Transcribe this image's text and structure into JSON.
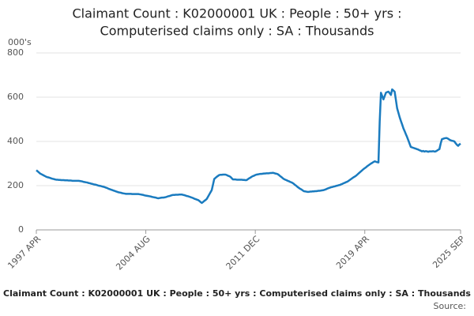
{
  "chart_data": {
    "type": "line",
    "title": [
      "Claimant Count : K02000001 UK : People : 50+ yrs :",
      "Computerised claims only : SA : Thousands"
    ],
    "y_unit": "000's",
    "footer": "Claimant Count : K02000001 UK : People : 50+ yrs : Computerised claims only : SA : Thousands",
    "source": "Source:",
    "categories": [
      "1997 APR",
      null,
      null,
      null,
      null,
      null,
      null,
      null,
      null,
      null,
      null,
      null,
      null,
      null,
      null,
      null,
      null,
      null,
      null,
      null,
      null,
      null,
      null,
      null,
      null,
      null,
      null,
      null,
      null,
      null,
      null,
      null,
      null,
      null,
      null,
      null,
      null,
      null,
      null,
      null,
      null,
      null,
      null,
      null,
      null,
      null,
      null,
      null,
      null,
      null,
      null,
      null,
      null,
      null,
      null,
      null,
      null,
      null,
      null,
      null,
      null,
      null,
      null,
      null,
      null,
      null,
      null,
      null,
      null,
      null,
      null,
      null,
      null,
      null,
      null,
      null,
      null,
      null,
      null,
      null,
      null,
      null,
      null,
      null,
      null,
      null,
      null,
      null,
      "2004 AUG",
      null,
      null,
      null,
      null,
      null,
      null,
      null,
      null,
      null,
      null,
      null,
      null,
      null,
      null,
      null,
      null,
      null,
      null,
      null,
      null,
      null,
      null,
      null,
      null,
      null,
      null,
      null,
      null,
      null,
      null,
      null,
      null,
      null,
      null,
      null,
      null,
      null,
      null,
      null,
      null,
      null,
      null,
      null,
      null,
      null,
      null,
      null,
      null,
      null,
      null,
      null,
      null,
      null,
      null,
      null,
      null,
      null,
      null,
      null,
      null,
      null,
      null,
      null,
      null,
      null,
      null,
      null,
      null,
      null,
      null,
      null,
      null,
      null,
      null,
      null,
      null,
      null,
      null,
      null,
      null,
      null,
      null,
      null,
      null,
      null,
      null,
      null,
      "2011 DEC",
      null,
      null,
      null,
      null,
      null,
      null,
      null,
      null,
      null,
      null,
      null,
      null,
      null,
      null,
      null,
      null,
      null,
      null,
      null,
      null,
      null,
      null,
      null,
      null,
      null,
      null,
      null,
      null,
      null,
      null,
      null,
      null,
      null,
      null,
      null,
      null,
      null,
      null,
      null,
      null,
      null,
      null,
      null,
      null,
      null,
      null,
      null,
      null,
      null,
      null,
      null,
      null,
      null,
      null,
      null,
      null,
      null,
      null,
      null,
      null,
      null,
      null,
      null,
      null,
      null,
      null,
      null,
      null,
      null,
      null,
      null,
      null,
      null,
      null,
      null,
      null,
      null,
      null,
      null,
      null,
      null,
      null,
      null,
      null,
      null,
      null,
      null,
      "2019 APR",
      null,
      null,
      null,
      null,
      null,
      null,
      null,
      null,
      null,
      null,
      null,
      null,
      null,
      null,
      null,
      null,
      null,
      null,
      null,
      null,
      null,
      null,
      null,
      null,
      null,
      null,
      null,
      null,
      null,
      null,
      null,
      null,
      null,
      null,
      null,
      null,
      null,
      null,
      null,
      null,
      null,
      null,
      null,
      null,
      null,
      null,
      null,
      null,
      null,
      null,
      null,
      null,
      null,
      null,
      null,
      null,
      null,
      null,
      null,
      null,
      null,
      null,
      null,
      null,
      null,
      null,
      null,
      null,
      null,
      null,
      null,
      null,
      null,
      null,
      null,
      null,
      "2025 SEP"
    ],
    "series": [
      {
        "color": "#1a7bbf",
        "values": [
          270,
          265,
          260,
          255,
          252,
          249,
          246,
          243,
          240,
          238,
          237,
          235,
          233,
          231,
          230,
          228,
          227,
          227,
          226,
          226,
          225,
          225,
          225,
          224,
          224,
          224,
          223,
          223,
          223,
          222,
          222,
          222,
          222,
          222,
          222,
          221,
          220,
          219,
          217,
          216,
          215,
          214,
          212,
          211,
          209,
          208,
          206,
          205,
          204,
          202,
          200,
          199,
          198,
          196,
          195,
          193,
          191,
          189,
          186,
          184,
          182,
          180,
          178,
          176,
          174,
          172,
          170,
          169,
          168,
          166,
          165,
          164,
          163,
          163,
          163,
          163,
          163,
          162,
          162,
          162,
          162,
          162,
          162,
          161,
          160,
          159,
          158,
          156,
          155,
          154,
          153,
          152,
          151,
          149,
          148,
          147,
          146,
          144,
          143,
          144,
          145,
          146,
          146,
          147,
          148,
          150,
          152,
          153,
          155,
          157,
          158,
          158,
          159,
          159,
          159,
          160,
          160,
          160,
          158,
          157,
          155,
          153,
          152,
          150,
          148,
          146,
          144,
          141,
          139,
          137,
          135,
          131,
          126,
          122,
          126,
          131,
          135,
          140,
          150,
          160,
          170,
          180,
          205,
          230,
          235,
          240,
          244,
          248,
          249,
          249,
          250,
          250,
          250,
          248,
          245,
          243,
          240,
          234,
          228,
          228,
          228,
          227,
          227,
          227,
          227,
          227,
          226,
          226,
          225,
          225,
          229,
          233,
          236,
          240,
          243,
          245,
          248,
          250,
          251,
          252,
          253,
          253,
          254,
          255,
          255,
          256,
          256,
          256,
          257,
          257,
          258,
          257,
          255,
          254,
          252,
          248,
          243,
          239,
          234,
          230,
          227,
          225,
          222,
          220,
          217,
          215,
          212,
          208,
          203,
          199,
          194,
          190,
          186,
          183,
          179,
          175,
          174,
          173,
          172,
          172,
          173,
          173,
          174,
          174,
          175,
          175,
          176,
          177,
          177,
          178,
          179,
          180,
          182,
          184,
          187,
          189,
          191,
          193,
          194,
          196,
          197,
          199,
          200,
          202,
          203,
          206,
          208,
          211,
          213,
          216,
          218,
          222,
          226,
          230,
          234,
          238,
          241,
          245,
          250,
          255,
          260,
          265,
          270,
          275,
          279,
          283,
          288,
          292,
          296,
          300,
          303,
          307,
          310,
          308,
          306,
          305,
          490,
          620,
          605,
          590,
          605,
          620,
          623,
          625,
          618,
          610,
          635,
          630,
          625,
          588,
          550,
          530,
          510,
          493,
          477,
          460,
          447,
          433,
          420,
          405,
          390,
          375,
          373,
          371,
          369,
          367,
          365,
          363,
          360,
          358,
          355,
          357,
          354,
          356,
          355,
          353,
          355,
          355,
          355,
          356,
          354,
          355,
          358,
          362,
          365,
          390,
          410,
          412,
          414,
          415,
          415,
          412,
          408,
          405,
          403,
          402,
          400,
          392,
          385,
          380,
          386,
          390
        ]
      }
    ],
    "ylim": [
      0,
      800
    ],
    "yticks": [
      0,
      200,
      400,
      600,
      800
    ],
    "grid": true
  }
}
